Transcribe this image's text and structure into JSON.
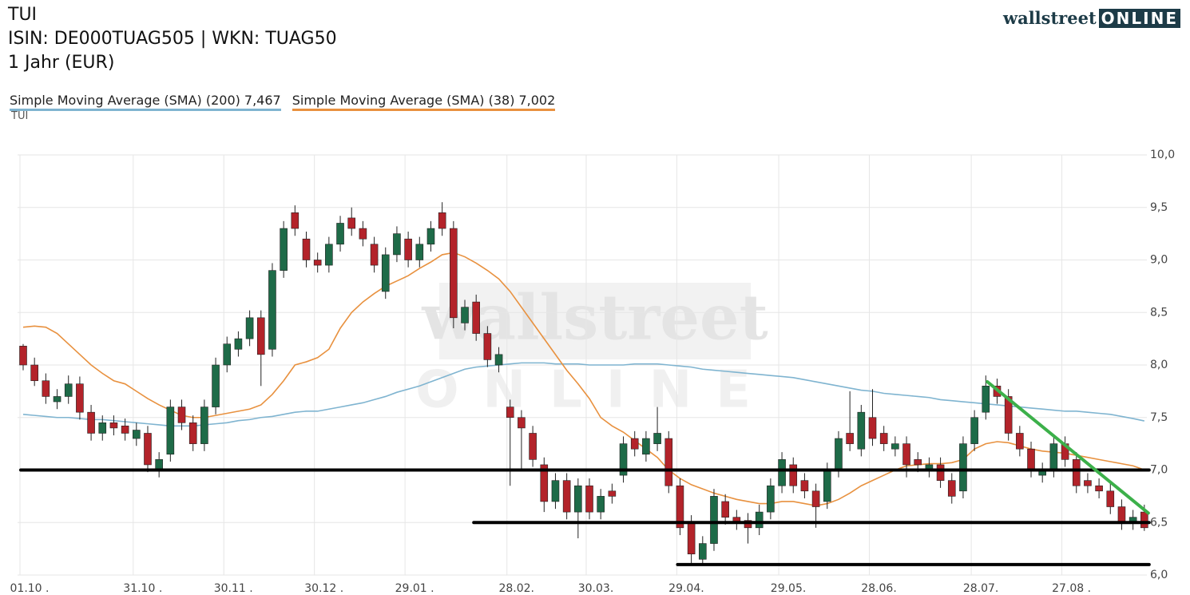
{
  "header": {
    "title": "TUI",
    "lines": [
      "ISIN: DE000TUAG505  | WKN: TUAG50",
      "1 Jahr (EUR)"
    ]
  },
  "logo": {
    "left": "wallstreet",
    "right": "ONLINE"
  },
  "watermark": {
    "top": "wallstreet",
    "bottom": "ONLINE"
  },
  "chart_data": {
    "type": "candlestick",
    "series_label": "TUI",
    "categories": [
      "01.10 .",
      null,
      null,
      null,
      null,
      null,
      null,
      null,
      null,
      null,
      "31.10 .",
      null,
      null,
      null,
      null,
      null,
      null,
      null,
      "30.11 .",
      null,
      null,
      null,
      null,
      null,
      null,
      null,
      "30.12 .",
      null,
      null,
      null,
      null,
      null,
      null,
      null,
      "29.01 .",
      null,
      null,
      null,
      null,
      null,
      null,
      null,
      null,
      "28.02.",
      null,
      null,
      null,
      null,
      null,
      null,
      "30.03.",
      null,
      null,
      null,
      null,
      null,
      null,
      null,
      "29.04.",
      null,
      null,
      null,
      null,
      null,
      null,
      null,
      null,
      "29.05.",
      null,
      null,
      null,
      null,
      null,
      null,
      null,
      "28.06.",
      null,
      null,
      null,
      null,
      null,
      null,
      null,
      null,
      "28.07.",
      null,
      null,
      null,
      null,
      null,
      null,
      null,
      "27.08 .",
      null,
      null,
      null,
      null,
      null,
      null,
      null
    ],
    "open": [
      8.18,
      8.0,
      7.85,
      7.65,
      7.7,
      7.82,
      7.55,
      7.35,
      7.45,
      7.42,
      7.3,
      7.35,
      7.0,
      7.15,
      7.6,
      7.45,
      7.25,
      7.6,
      8.0,
      8.15,
      8.25,
      8.45,
      8.15,
      8.9,
      9.45,
      9.2,
      9.0,
      8.95,
      9.15,
      9.4,
      9.3,
      9.15,
      8.7,
      9.05,
      9.2,
      9.0,
      9.15,
      9.45,
      9.3,
      8.4,
      8.6,
      8.3,
      8.0,
      7.6,
      7.5,
      7.35,
      7.05,
      6.7,
      6.9,
      6.6,
      6.85,
      6.6,
      6.8,
      6.95,
      7.3,
      7.15,
      7.25,
      7.3,
      6.85,
      6.5,
      6.15,
      6.3,
      6.7,
      6.55,
      6.52,
      6.45,
      6.6,
      6.85,
      7.05,
      6.9,
      6.8,
      6.7,
      7.0,
      7.35,
      7.2,
      7.5,
      7.35,
      7.2,
      7.25,
      7.1,
      7.0,
      7.05,
      6.9,
      6.8,
      7.25,
      7.55,
      7.8,
      7.7,
      7.35,
      7.2,
      6.95,
      7.0,
      7.25,
      7.1,
      6.9,
      6.85,
      6.8,
      6.65,
      6.5,
      6.6
    ],
    "high": [
      8.2,
      8.07,
      7.92,
      7.77,
      7.9,
      7.89,
      7.62,
      7.52,
      7.52,
      7.49,
      7.45,
      7.42,
      7.17,
      7.67,
      7.67,
      7.52,
      7.67,
      8.07,
      8.27,
      8.32,
      8.52,
      8.52,
      8.97,
      9.37,
      9.52,
      9.27,
      9.07,
      9.22,
      9.42,
      9.5,
      9.37,
      9.22,
      9.12,
      9.32,
      9.27,
      9.22,
      9.37,
      9.55,
      9.37,
      8.62,
      8.67,
      8.37,
      8.17,
      7.67,
      7.57,
      7.42,
      7.12,
      6.97,
      6.97,
      6.92,
      6.92,
      6.82,
      6.87,
      7.32,
      7.37,
      7.37,
      7.6,
      7.37,
      6.92,
      6.57,
      6.37,
      6.82,
      6.77,
      6.62,
      6.59,
      6.67,
      6.92,
      7.17,
      7.12,
      6.97,
      6.87,
      7.07,
      7.37,
      7.75,
      7.62,
      7.77,
      7.42,
      7.32,
      7.32,
      7.17,
      7.12,
      7.12,
      6.97,
      7.32,
      7.57,
      7.9,
      7.87,
      7.77,
      7.42,
      7.27,
      7.07,
      7.32,
      7.32,
      7.17,
      6.97,
      6.92,
      6.87,
      6.72,
      6.62,
      6.67
    ],
    "low": [
      7.95,
      7.8,
      7.63,
      7.58,
      7.63,
      7.48,
      7.28,
      7.28,
      7.33,
      7.28,
      7.23,
      6.98,
      6.93,
      7.08,
      7.38,
      7.18,
      7.18,
      7.53,
      7.93,
      8.08,
      8.18,
      7.8,
      8.08,
      8.83,
      9.23,
      8.93,
      8.88,
      8.88,
      9.08,
      9.23,
      9.13,
      8.88,
      8.63,
      8.98,
      8.93,
      8.93,
      9.08,
      9.23,
      8.35,
      8.33,
      8.23,
      7.98,
      7.93,
      6.85,
      7.0,
      7.03,
      6.6,
      6.63,
      6.53,
      6.35,
      6.53,
      6.53,
      6.68,
      6.88,
      7.13,
      7.08,
      7.18,
      6.78,
      6.38,
      6.1,
      6.1,
      6.23,
      6.48,
      6.43,
      6.3,
      6.38,
      6.53,
      6.78,
      6.78,
      6.73,
      6.45,
      6.63,
      6.93,
      7.18,
      7.13,
      7.23,
      7.18,
      7.13,
      6.93,
      6.98,
      6.93,
      6.83,
      6.68,
      6.73,
      7.18,
      7.48,
      7.63,
      7.28,
      7.13,
      6.93,
      6.88,
      6.93,
      7.03,
      6.78,
      6.78,
      6.73,
      6.58,
      6.43,
      6.43,
      6.42
    ],
    "close": [
      8.0,
      7.85,
      7.7,
      7.7,
      7.82,
      7.55,
      7.35,
      7.45,
      7.4,
      7.35,
      7.38,
      7.05,
      7.1,
      7.6,
      7.45,
      7.25,
      7.6,
      8.0,
      8.2,
      8.25,
      8.45,
      8.1,
      8.9,
      9.3,
      9.3,
      9.0,
      8.95,
      9.15,
      9.35,
      9.3,
      9.2,
      8.95,
      9.05,
      9.25,
      9.0,
      9.15,
      9.3,
      9.3,
      8.45,
      8.55,
      8.3,
      8.05,
      8.1,
      7.5,
      7.4,
      7.1,
      6.7,
      6.9,
      6.6,
      6.85,
      6.6,
      6.75,
      6.75,
      7.25,
      7.2,
      7.3,
      7.35,
      6.85,
      6.45,
      6.2,
      6.3,
      6.75,
      6.55,
      6.5,
      6.45,
      6.6,
      6.85,
      7.1,
      6.85,
      6.8,
      6.65,
      7.0,
      7.3,
      7.25,
      7.55,
      7.3,
      7.25,
      7.25,
      7.05,
      7.05,
      7.05,
      6.9,
      6.75,
      7.25,
      7.5,
      7.8,
      7.7,
      7.35,
      7.2,
      7.0,
      7.0,
      7.25,
      7.1,
      6.85,
      6.85,
      6.8,
      6.65,
      6.5,
      6.55,
      6.45
    ],
    "up_color": "#1e6b48",
    "down_color": "#b3232a",
    "series": [
      {
        "name": "Simple Moving Average (SMA) (200)",
        "value_label": "7,467",
        "color": "#7fb4d0",
        "values": [
          7.53,
          7.52,
          7.51,
          7.5,
          7.5,
          7.49,
          7.48,
          7.48,
          7.47,
          7.46,
          7.45,
          7.44,
          7.43,
          7.42,
          7.42,
          7.42,
          7.43,
          7.44,
          7.45,
          7.47,
          7.48,
          7.5,
          7.51,
          7.53,
          7.55,
          7.56,
          7.56,
          7.58,
          7.6,
          7.62,
          7.64,
          7.67,
          7.7,
          7.74,
          7.77,
          7.8,
          7.84,
          7.88,
          7.92,
          7.96,
          7.98,
          7.99,
          8.0,
          8.01,
          8.02,
          8.02,
          8.02,
          8.01,
          8.01,
          8.01,
          8.0,
          8.0,
          8.0,
          8.0,
          8.01,
          8.01,
          8.01,
          8.0,
          7.99,
          7.98,
          7.96,
          7.95,
          7.94,
          7.93,
          7.92,
          7.91,
          7.9,
          7.89,
          7.88,
          7.86,
          7.84,
          7.82,
          7.8,
          7.78,
          7.76,
          7.75,
          7.73,
          7.72,
          7.71,
          7.7,
          7.69,
          7.67,
          7.66,
          7.65,
          7.64,
          7.63,
          7.62,
          7.61,
          7.6,
          7.59,
          7.58,
          7.57,
          7.56,
          7.56,
          7.55,
          7.54,
          7.53,
          7.51,
          7.49,
          7.467
        ]
      },
      {
        "name": "Simple Moving Average (SMA) (38)",
        "value_label": "7,002",
        "color": "#e8913f",
        "values": [
          8.36,
          8.37,
          8.36,
          8.3,
          8.2,
          8.1,
          8.0,
          7.92,
          7.85,
          7.82,
          7.75,
          7.68,
          7.62,
          7.57,
          7.52,
          7.5,
          7.5,
          7.52,
          7.54,
          7.56,
          7.58,
          7.62,
          7.72,
          7.85,
          8.0,
          8.03,
          8.07,
          8.15,
          8.35,
          8.5,
          8.6,
          8.68,
          8.75,
          8.8,
          8.85,
          8.92,
          8.98,
          9.05,
          9.07,
          9.03,
          8.97,
          8.9,
          8.82,
          8.7,
          8.55,
          8.4,
          8.25,
          8.1,
          7.95,
          7.82,
          7.68,
          7.5,
          7.42,
          7.36,
          7.28,
          7.2,
          7.12,
          7.0,
          6.92,
          6.86,
          6.82,
          6.78,
          6.75,
          6.72,
          6.7,
          6.68,
          6.68,
          6.7,
          6.7,
          6.68,
          6.66,
          6.68,
          6.72,
          6.78,
          6.85,
          6.9,
          6.95,
          7.0,
          7.04,
          7.05,
          7.06,
          7.06,
          7.07,
          7.1,
          7.2,
          7.25,
          7.27,
          7.26,
          7.23,
          7.2,
          7.18,
          7.17,
          7.16,
          7.14,
          7.12,
          7.1,
          7.08,
          7.06,
          7.04,
          7.002
        ]
      }
    ],
    "hlines": [
      {
        "y": 7.0,
        "from": 0,
        "to": 99
      },
      {
        "y": 6.5,
        "from": 40,
        "to": 99
      },
      {
        "y": 6.1,
        "from": 58,
        "to": 99
      }
    ],
    "trendline": {
      "from": 85,
      "to": 99,
      "y": [
        7.84,
        6.59
      ],
      "color": "#3cb04a"
    },
    "ylim": [
      6,
      10
    ],
    "yticks": [
      {
        "value": 6,
        "label": "6,0"
      },
      {
        "value": 6.5,
        "label": "6,5"
      },
      {
        "value": 7,
        "label": "7,0"
      },
      {
        "value": 7.5,
        "label": "7,5"
      },
      {
        "value": 8,
        "label": "8,0"
      },
      {
        "value": 8.5,
        "label": "8,5"
      },
      {
        "value": 9,
        "label": "9,0"
      },
      {
        "value": 9.5,
        "label": "9,5"
      },
      {
        "value": 10,
        "label": "10,0"
      }
    ],
    "grid": true
  }
}
